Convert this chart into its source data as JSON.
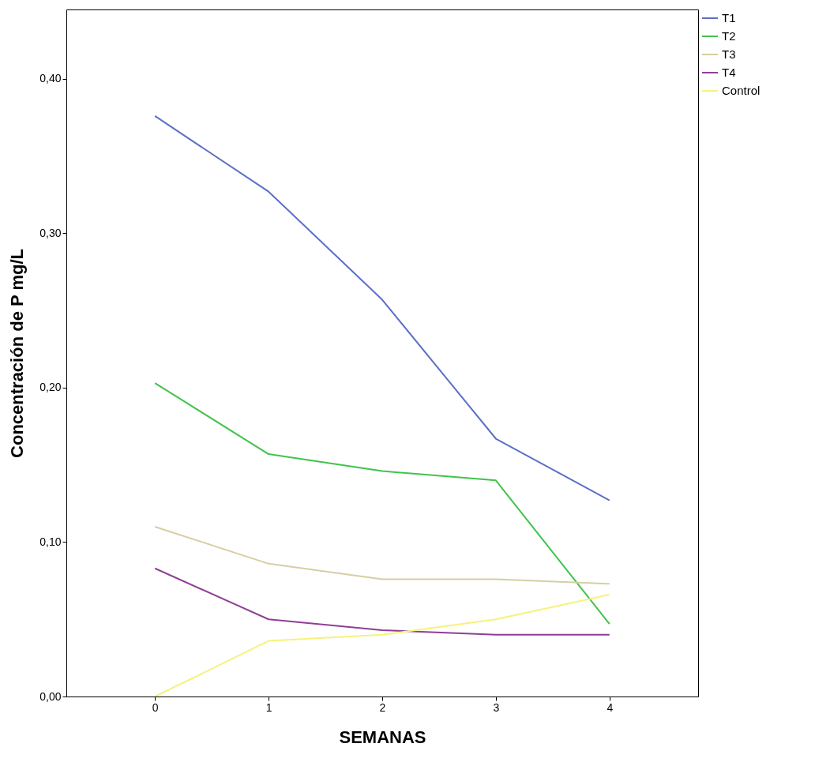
{
  "chart_data": {
    "type": "line",
    "xlabel": "SEMANAS",
    "ylabel": "Concentración de P mg/L",
    "x": [
      0,
      1,
      2,
      3,
      4
    ],
    "xlim": [
      -0.78,
      4.78
    ],
    "xticks": [
      0,
      1,
      2,
      3,
      4
    ],
    "ylim": [
      0,
      0.445
    ],
    "yticks": [
      {
        "value": 0,
        "label": "0,00"
      },
      {
        "value": 0.1,
        "label": "0,10"
      },
      {
        "value": 0.2,
        "label": "0,20"
      },
      {
        "value": 0.3,
        "label": "0,30"
      },
      {
        "value": 0.4,
        "label": "0,40"
      }
    ],
    "series": [
      {
        "name": "T1",
        "color": "#5a6fc8",
        "values": [
          0.376,
          0.327,
          0.257,
          0.167,
          0.127
        ]
      },
      {
        "name": "T2",
        "color": "#40c34c",
        "values": [
          0.203,
          0.157,
          0.146,
          0.14,
          0.047
        ]
      },
      {
        "name": "T3",
        "color": "#d4cfa3",
        "values": [
          0.11,
          0.086,
          0.076,
          0.076,
          0.073
        ]
      },
      {
        "name": "T4",
        "color": "#8e3f95",
        "values": [
          0.083,
          0.05,
          0.043,
          0.04,
          0.04
        ]
      },
      {
        "name": "Control",
        "color": "#f6f27a",
        "values": [
          0.0,
          0.036,
          0.04,
          0.05,
          0.066
        ]
      }
    ],
    "grid": false,
    "legend": "top right",
    "marker": "none",
    "line_style": "solid"
  }
}
